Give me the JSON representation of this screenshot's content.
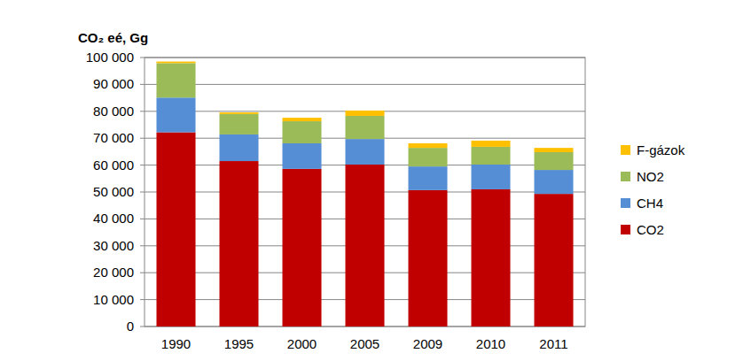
{
  "chart_data": {
    "type": "bar",
    "stacked": true,
    "grid": true,
    "legend": "right",
    "y_label": "CO₂ eé, Gg",
    "categories": [
      "1990",
      "1995",
      "2000",
      "2005",
      "2009",
      "2010",
      "2011"
    ],
    "ylim": [
      0,
      100000
    ],
    "yticks": [
      0,
      {
        "value": 10000,
        "label": "10 000"
      },
      {
        "value": 20000,
        "label": "20 000"
      },
      {
        "value": 30000,
        "label": "30 000"
      },
      {
        "value": 40000,
        "label": "40 000"
      },
      {
        "value": 50000,
        "label": "50 000"
      },
      {
        "value": 60000,
        "label": "60 000"
      },
      {
        "value": 70000,
        "label": "70 000"
      },
      {
        "value": 80000,
        "label": "80 000"
      },
      {
        "value": 90000,
        "label": "90 000"
      },
      {
        "value": 100000,
        "label": "100 000"
      }
    ],
    "series": [
      {
        "name": "CO2",
        "color": "#c00000",
        "values": [
          72200,
          61500,
          58600,
          60200,
          50700,
          51000,
          49300
        ]
      },
      {
        "name": "CH4",
        "color": "#558ed5",
        "values": [
          12900,
          9900,
          9500,
          9500,
          8800,
          9200,
          8900
        ]
      },
      {
        "name": "NO2",
        "color": "#9bbb59",
        "values": [
          12800,
          7600,
          8200,
          8600,
          6900,
          6600,
          6600
        ]
      },
      {
        "name": "F-gázok",
        "color": "#ffc000",
        "values": [
          600,
          600,
          1300,
          2000,
          1700,
          2300,
          1600
        ]
      }
    ]
  }
}
